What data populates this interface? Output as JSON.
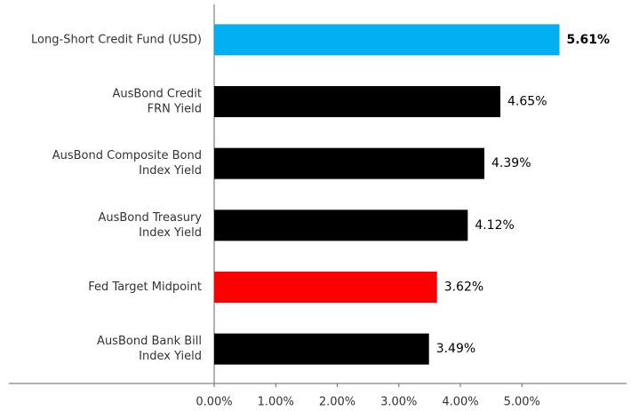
{
  "chart_data": {
    "type": "bar",
    "orientation": "horizontal",
    "categories": [
      [
        "Long-Short Credit Fund (USD)"
      ],
      [
        "AusBond Credit",
        "FRN Yield"
      ],
      [
        "AusBond Composite Bond",
        "Index Yield"
      ],
      [
        "AusBond Treasury",
        "Index Yield"
      ],
      [
        "Fed Target Midpoint"
      ],
      [
        "AusBond Bank Bill",
        "Index Yield"
      ]
    ],
    "values": [
      5.61,
      4.65,
      4.39,
      4.12,
      3.62,
      3.49
    ],
    "value_labels": [
      "5.61%",
      "4.65%",
      "4.39%",
      "4.12%",
      "3.62%",
      "3.49%"
    ],
    "colors": [
      "#00b0f0",
      "#000000",
      "#000000",
      "#000000",
      "#ff0000",
      "#000000"
    ],
    "xlim": [
      0,
      6.7
    ],
    "xticks": [
      {
        "value": 0,
        "label": "0.00%"
      },
      {
        "value": 1,
        "label": "1.00%"
      },
      {
        "value": 2,
        "label": "2.00%"
      },
      {
        "value": 3,
        "label": "3.00%"
      },
      {
        "value": 4,
        "label": "4.00%"
      },
      {
        "value": 5,
        "label": "5.00%"
      }
    ],
    "grid": false
  }
}
